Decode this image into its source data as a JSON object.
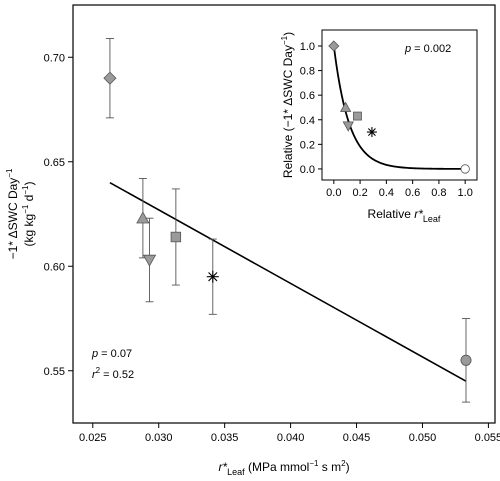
{
  "chart_data": [
    {
      "type": "scatter",
      "xlabel": "r*Leaf (MPa mmol−1 s m2)",
      "xlabel_main": "r*",
      "xlabel_sub": "Leaf",
      "xlabel_units": " (MPa mmol",
      "xlabel_units_sup": "−1",
      "xlabel_units_mid": " s m",
      "xlabel_units_sup2": "2",
      "xlabel_units_end": ")",
      "ylabel_line1": "−1* ΔSWC Day",
      "ylabel_line1_sup": "−1",
      "ylabel_line2": "(kg kg",
      "ylabel_line2_sup1": "−1",
      "ylabel_line2_mid": " d",
      "ylabel_line2_sup2": "−1",
      "ylabel_line2_end": ")",
      "xlim": [
        0.0235,
        0.0555
      ],
      "ylim": [
        0.525,
        0.725
      ],
      "x_ticks": [
        0.025,
        0.03,
        0.035,
        0.04,
        0.045,
        0.05,
        0.055
      ],
      "x_tick_labels": [
        "0.025",
        "0.030",
        "0.035",
        "0.040",
        "0.045",
        "0.050",
        "0.055"
      ],
      "y_ticks": [
        0.55,
        0.6,
        0.65,
        0.7
      ],
      "y_tick_labels": [
        "0.55",
        "0.60",
        "0.65",
        "0.70"
      ],
      "points": [
        {
          "x": 0.0263,
          "y": 0.69,
          "err": 0.019,
          "marker": "diamond"
        },
        {
          "x": 0.0288,
          "y": 0.623,
          "err": 0.019,
          "marker": "triangle-up"
        },
        {
          "x": 0.0293,
          "y": 0.603,
          "err": 0.02,
          "marker": "triangle-down"
        },
        {
          "x": 0.0313,
          "y": 0.614,
          "err": 0.023,
          "marker": "square"
        },
        {
          "x": 0.0341,
          "y": 0.595,
          "err": 0.018,
          "marker": "asterisk"
        },
        {
          "x": 0.0533,
          "y": 0.555,
          "err": 0.02,
          "marker": "circle"
        }
      ],
      "fit_line": {
        "x": [
          0.0263,
          0.0533
        ],
        "y": [
          0.64,
          0.545
        ]
      },
      "annotations": {
        "p_label": "p",
        "p_value": " = 0.07",
        "r2_label": "r",
        "r2_sup": "2",
        "r2_value": " = 0.52"
      },
      "grid": false
    },
    {
      "type": "scatter",
      "xlabel_main": "Relative ",
      "xlabel_r": "r*",
      "xlabel_sub": "Leaf",
      "ylabel": "Relative (−1* ΔSWC Day",
      "ylabel_sup": "−1",
      "ylabel_end": ")",
      "xlim": [
        -0.09,
        1.09
      ],
      "ylim": [
        -0.09,
        1.13
      ],
      "x_ticks": [
        0.0,
        0.2,
        0.4,
        0.6,
        0.8,
        1.0
      ],
      "x_tick_labels": [
        "0.0",
        "0.2",
        "0.4",
        "0.6",
        "0.8",
        "1.0"
      ],
      "y_ticks": [
        0.0,
        0.2,
        0.4,
        0.6,
        0.8,
        1.0
      ],
      "y_tick_labels": [
        "0.0",
        "0.2",
        "0.4",
        "0.6",
        "0.8",
        "1.0"
      ],
      "points": [
        {
          "x": 0.0,
          "y": 1.0,
          "marker": "diamond"
        },
        {
          "x": 0.09,
          "y": 0.5,
          "marker": "triangle-up"
        },
        {
          "x": 0.11,
          "y": 0.35,
          "marker": "triangle-down"
        },
        {
          "x": 0.18,
          "y": 0.43,
          "marker": "square"
        },
        {
          "x": 0.29,
          "y": 0.3,
          "marker": "asterisk"
        },
        {
          "x": 1.0,
          "y": 0.0,
          "marker": "circle"
        }
      ],
      "fit_curve": {
        "form": "exponential decay",
        "k": 8.5
      },
      "annotations": {
        "p_label": "p",
        "p_value": " = 0.002"
      },
      "grid": false
    }
  ]
}
